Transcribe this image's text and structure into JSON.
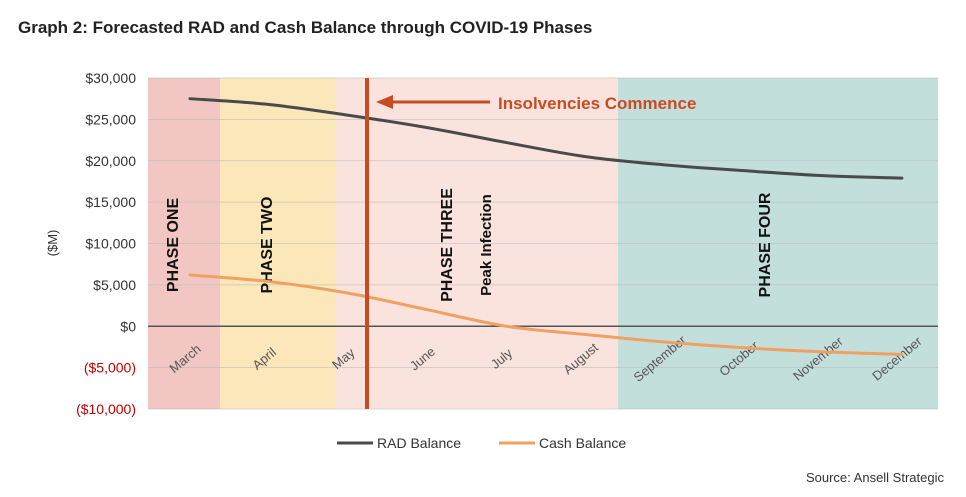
{
  "title": "Graph 2: Forecasted RAD and Cash Balance through COVID-19 Phases",
  "source": "Source: Ansell Strategic",
  "chart_data": {
    "type": "line",
    "categories": [
      "March",
      "April",
      "May",
      "June",
      "July",
      "August",
      "September",
      "October",
      "November",
      "December"
    ],
    "ylabel": "($M)",
    "ylim": [
      -10000,
      30000
    ],
    "yticks": [
      30000,
      25000,
      20000,
      15000,
      10000,
      5000,
      0,
      -5000,
      -10000
    ],
    "ytick_labels": [
      "$30,000",
      "$25,000",
      "$20,000",
      "$15,000",
      "$10,000",
      "$5,000",
      "$0",
      "($5,000)",
      "($10,000)"
    ],
    "negative_tick_color": "#c00000",
    "series": [
      {
        "name": "RAD Balance",
        "color": "#4a4a4a",
        "values": [
          27500,
          26800,
          25500,
          24000,
          22200,
          20500,
          19500,
          18800,
          18200,
          17900
        ]
      },
      {
        "name": "Cash Balance",
        "color": "#f0a060",
        "values": [
          6200,
          5400,
          4000,
          2000,
          0,
          -1000,
          -1900,
          -2600,
          -3100,
          -3400
        ]
      }
    ],
    "phases": [
      {
        "label": "PHASE ONE",
        "color": "#f2c7c3"
      },
      {
        "label": "PHASE TWO",
        "color": "#fbe7b9"
      },
      {
        "label": "PHASE THREE",
        "color": "#fbe3dd"
      },
      {
        "label": "PHASE FOUR",
        "color": "#c3dfdc"
      }
    ],
    "peak_label": "Peak Infection",
    "annotation": {
      "text": "Insolvencies Commence",
      "color": "#c84b22"
    },
    "legend": {
      "position": "bottom"
    }
  }
}
